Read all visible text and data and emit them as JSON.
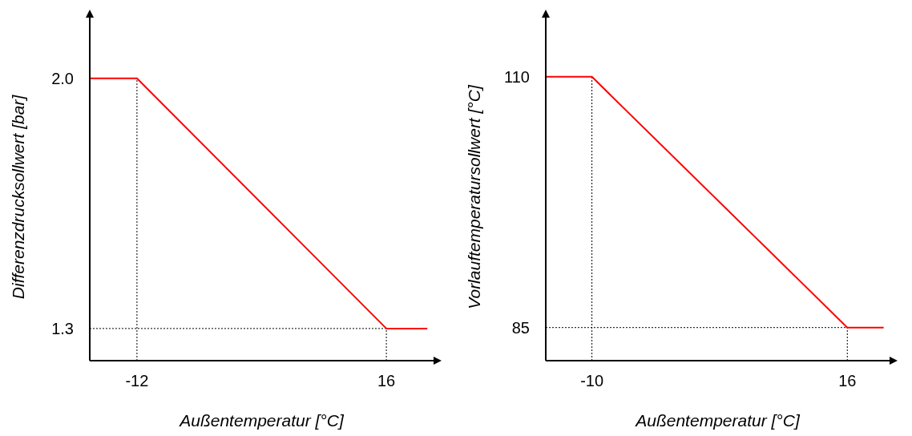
{
  "chart_data": [
    {
      "type": "line",
      "xlabel": "Außentemperatur [°C]",
      "ylabel": "Differenzdrucksollwert [bar]",
      "x": [
        -17.3,
        -12,
        16,
        20.6
      ],
      "series": [
        {
          "color": "#ff0000",
          "values": [
            2.0,
            2.0,
            1.3,
            1.3
          ]
        }
      ],
      "xlim": [
        -17.3,
        21.3
      ],
      "ylim": [
        1.21,
        2.17
      ],
      "xticks": [
        -12,
        16
      ],
      "yticks": [
        {
          "value": 2.0,
          "label": "2.0"
        },
        {
          "value": 1.3,
          "label": "1.3"
        }
      ],
      "grid": false,
      "ref_lines": [
        {
          "axis": "x",
          "value": -12,
          "color": "#000000",
          "line_style": "dotted"
        },
        {
          "axis": "x",
          "value": 16,
          "color": "#000000",
          "line_style": "dotted"
        },
        {
          "axis": "y",
          "value": 1.3,
          "color": "#000000",
          "line_style": "dotted"
        }
      ]
    },
    {
      "type": "line",
      "xlabel": "Außentemperatur [°C]",
      "ylabel": "Vorlauftemperatursollwert [°C]",
      "x": [
        -14.7,
        -10,
        16,
        19.7
      ],
      "series": [
        {
          "color": "#ff0000",
          "values": [
            110,
            110,
            85,
            85
          ]
        }
      ],
      "xlim": [
        -14.7,
        20.3
      ],
      "ylim": [
        81.7,
        115.9
      ],
      "xticks": [
        -10,
        16
      ],
      "yticks": [
        110,
        85
      ],
      "grid": false,
      "ref_lines": [
        {
          "axis": "x",
          "value": -10,
          "color": "#000000",
          "line_style": "dotted"
        },
        {
          "axis": "x",
          "value": 16,
          "color": "#000000",
          "line_style": "dotted"
        },
        {
          "axis": "y",
          "value": 85,
          "color": "#000000",
          "line_style": "dotted"
        }
      ]
    }
  ]
}
